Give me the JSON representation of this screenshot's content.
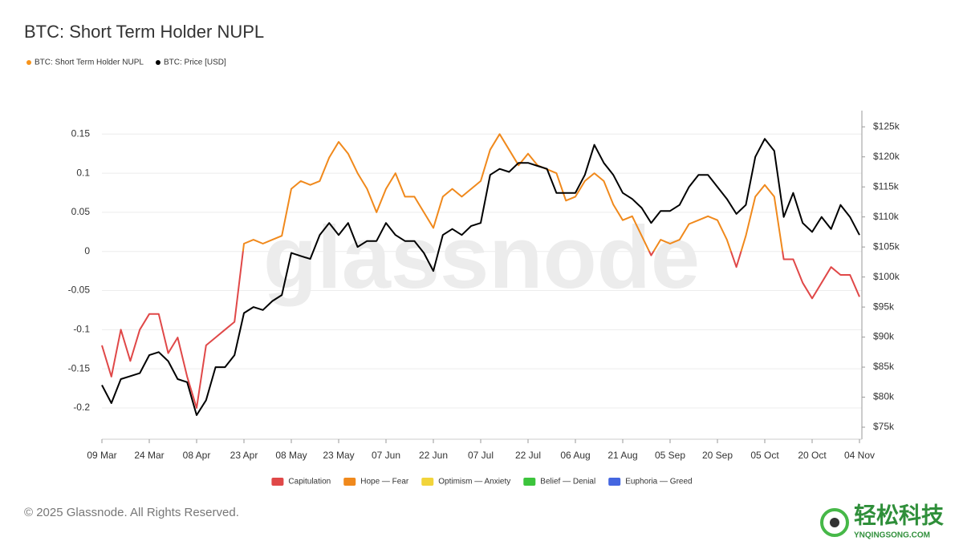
{
  "chart_data": {
    "type": "line",
    "title": "BTC: Short Term Holder NUPL",
    "watermark": "glassnode",
    "copyright": "© 2025 Glassnode. All Rights Reserved.",
    "logo_text": "轻松科技",
    "logo_url": "YNQINGSONG.COM",
    "categories": [
      "09 Mar",
      null,
      null,
      null,
      null,
      "24 Mar",
      null,
      null,
      null,
      null,
      "08 Apr",
      null,
      null,
      null,
      null,
      "23 Apr",
      null,
      null,
      null,
      null,
      "08 May",
      null,
      null,
      null,
      null,
      "23 May",
      null,
      null,
      null,
      null,
      "07 Jun",
      null,
      null,
      null,
      null,
      "22 Jun",
      null,
      null,
      null,
      null,
      "07 Jul",
      null,
      null,
      null,
      null,
      "22 Jul",
      null,
      null,
      null,
      null,
      "06 Aug",
      null,
      null,
      null,
      null,
      "21 Aug",
      null,
      null,
      null,
      null,
      "05 Sep",
      null,
      null,
      null,
      null,
      "20 Sep",
      null,
      null,
      null,
      null,
      "05 Oct",
      null,
      null,
      null,
      null,
      "20 Oct",
      null,
      null,
      null,
      null,
      "04 Nov"
    ],
    "series": [
      {
        "name": "BTC: Short Term Holder NUPL",
        "color": "#f7931a",
        "axis": "y",
        "values": [
          -0.12,
          -0.16,
          -0.1,
          -0.14,
          -0.1,
          -0.08,
          -0.08,
          -0.13,
          -0.11,
          -0.16,
          -0.2,
          -0.12,
          -0.11,
          -0.1,
          -0.09,
          0.01,
          0.015,
          0.01,
          0.015,
          0.02,
          0.08,
          0.09,
          0.085,
          0.09,
          0.12,
          0.14,
          0.125,
          0.1,
          0.08,
          0.05,
          0.08,
          0.1,
          0.07,
          0.07,
          0.05,
          0.03,
          0.07,
          0.08,
          0.07,
          0.08,
          0.09,
          0.13,
          0.15,
          0.13,
          0.11,
          0.125,
          0.11,
          0.105,
          0.1,
          0.065,
          0.07,
          0.09,
          0.1,
          0.09,
          0.06,
          0.04,
          0.045,
          0.02,
          -0.005,
          0.015,
          0.01,
          0.015,
          0.035,
          0.04,
          0.045,
          0.04,
          0.015,
          -0.02,
          0.02,
          0.07,
          0.085,
          0.07,
          -0.01,
          -0.01,
          -0.04,
          -0.06,
          -0.04,
          -0.02,
          -0.03,
          -0.03,
          -0.058
        ]
      },
      {
        "name": "BTC: Price [USD]",
        "color": "#000000",
        "axis": "y2",
        "values": [
          82000,
          79000,
          83000,
          83500,
          84000,
          87000,
          87500,
          86000,
          83000,
          82500,
          77000,
          79500,
          85000,
          85000,
          87000,
          94000,
          95000,
          94500,
          96000,
          97000,
          104000,
          103500,
          103000,
          107000,
          109000,
          107000,
          109000,
          105000,
          106000,
          106000,
          109000,
          107000,
          106000,
          106000,
          104000,
          101000,
          107000,
          108000,
          107000,
          108500,
          109000,
          117000,
          118000,
          117500,
          119000,
          119000,
          118500,
          118000,
          114000,
          114000,
          114000,
          117000,
          122000,
          119000,
          117000,
          114000,
          113000,
          111500,
          109000,
          111000,
          111000,
          112000,
          115000,
          117000,
          117000,
          115000,
          113000,
          110500,
          112000,
          120000,
          123000,
          121000,
          110000,
          114000,
          109000,
          107500,
          110000,
          108000,
          112000,
          110000,
          107000
        ]
      }
    ],
    "zones": [
      {
        "name": "Capitulation",
        "color": "#e04848"
      },
      {
        "name": "Hope — Fear",
        "color": "#f0891c"
      },
      {
        "name": "Optimism — Anxiety",
        "color": "#f2d43a"
      },
      {
        "name": "Belief — Denial",
        "color": "#3cc43c"
      },
      {
        "name": "Euphoria — Greed",
        "color": "#4466e0"
      }
    ],
    "ylim": [
      -0.24,
      0.18
    ],
    "yticks": [
      0.15,
      0.1,
      0.05,
      0,
      -0.05,
      -0.1,
      -0.15,
      -0.2
    ],
    "y2lim": [
      73000,
      127700
    ],
    "y2ticks": [
      {
        "value": 125000,
        "label": "$125k"
      },
      {
        "value": 120000,
        "label": "$120k"
      },
      {
        "value": 115000,
        "label": "$115k"
      },
      {
        "value": 110000,
        "label": "$110k"
      },
      {
        "value": 105000,
        "label": "$105k"
      },
      {
        "value": 100000,
        "label": "$100k"
      },
      {
        "value": 95000,
        "label": "$95k"
      },
      {
        "value": 90000,
        "label": "$90k"
      },
      {
        "value": 85000,
        "label": "$85k"
      },
      {
        "value": 80000,
        "label": "$80k"
      },
      {
        "value": 75000,
        "label": "$75k"
      }
    ],
    "grid": true
  }
}
